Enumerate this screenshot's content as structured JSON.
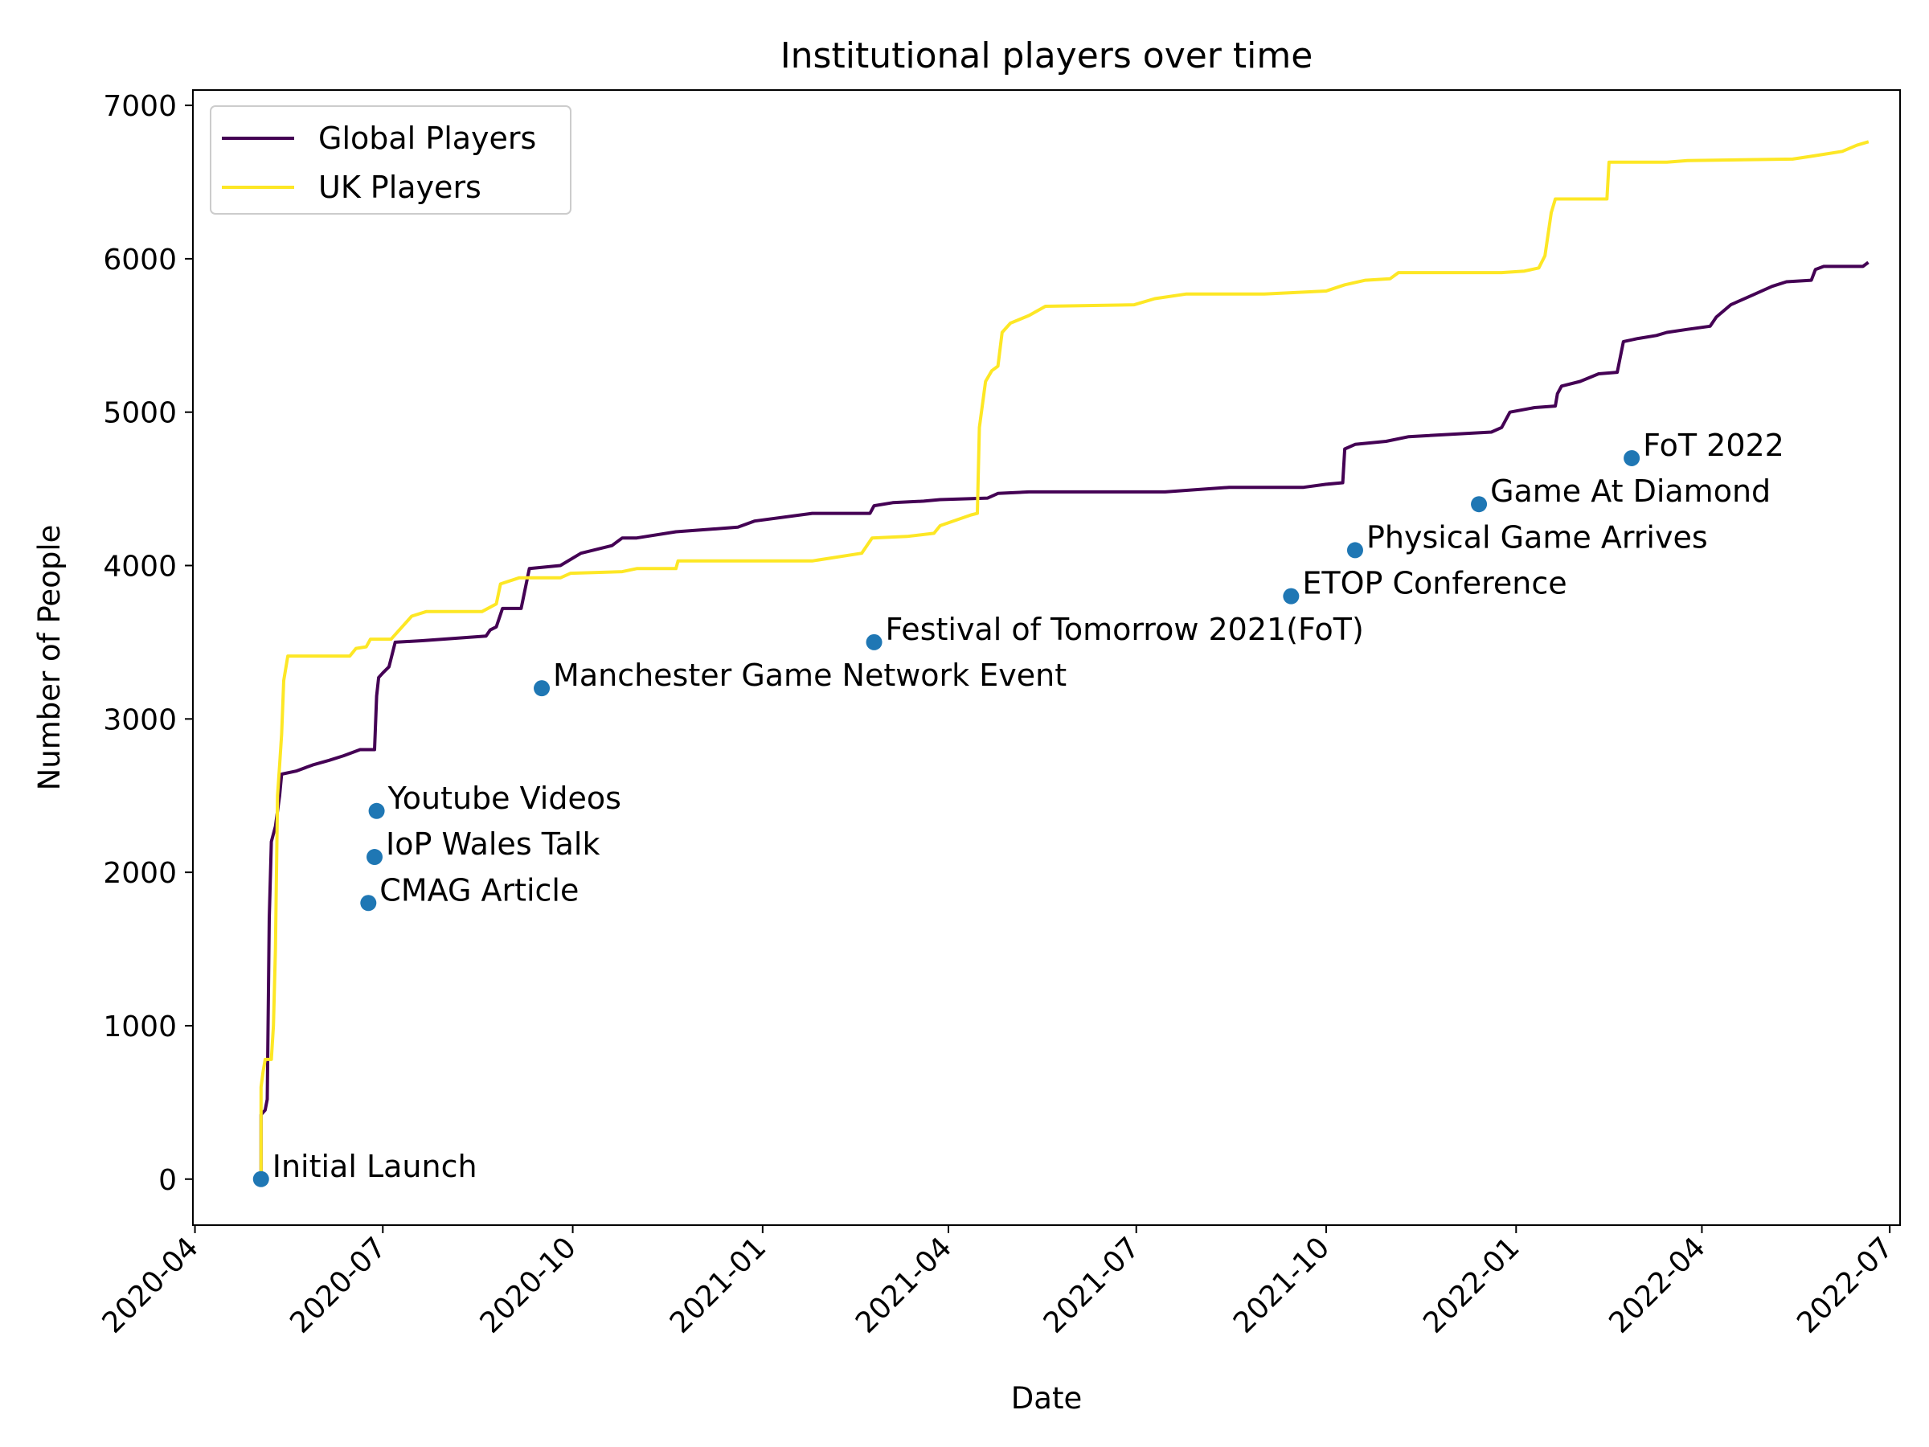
{
  "chart_data": {
    "type": "line",
    "title": "Institutional players over time",
    "xlabel": "Date",
    "ylabel": "Number of People",
    "x_axis": {
      "kind": "date",
      "range": [
        "2020-03-31",
        "2022-07-06"
      ],
      "ticks": [
        "2020-04",
        "2020-07",
        "2020-10",
        "2021-01",
        "2021-04",
        "2021-07",
        "2021-10",
        "2022-01",
        "2022-04",
        "2022-07"
      ]
    },
    "y_axis": {
      "range": [
        -300,
        7100
      ],
      "ticks": [
        0,
        1000,
        2000,
        3000,
        4000,
        5000,
        6000,
        7000
      ]
    },
    "legend": {
      "placement": "top-left"
    },
    "grid": false,
    "series": [
      {
        "name": "Global Players",
        "color": "#440154",
        "points": [
          [
            "2020-05-03",
            0
          ],
          [
            "2020-05-03",
            420
          ],
          [
            "2020-05-05",
            450
          ],
          [
            "2020-05-06",
            520
          ],
          [
            "2020-05-07",
            1700
          ],
          [
            "2020-05-08",
            2200
          ],
          [
            "2020-05-10",
            2300
          ],
          [
            "2020-05-12",
            2500
          ],
          [
            "2020-05-13",
            2640
          ],
          [
            "2020-05-20",
            2660
          ],
          [
            "2020-05-28",
            2700
          ],
          [
            "2020-06-05",
            2730
          ],
          [
            "2020-06-12",
            2760
          ],
          [
            "2020-06-20",
            2800
          ],
          [
            "2020-06-27",
            2800
          ],
          [
            "2020-06-28",
            3150
          ],
          [
            "2020-06-29",
            3270
          ],
          [
            "2020-07-01",
            3300
          ],
          [
            "2020-07-04",
            3340
          ],
          [
            "2020-07-07",
            3500
          ],
          [
            "2020-07-20",
            3510
          ],
          [
            "2020-08-20",
            3540
          ],
          [
            "2020-08-22",
            3580
          ],
          [
            "2020-08-25",
            3600
          ],
          [
            "2020-08-28",
            3720
          ],
          [
            "2020-09-06",
            3720
          ],
          [
            "2020-09-10",
            3980
          ],
          [
            "2020-09-25",
            4000
          ],
          [
            "2020-10-05",
            4080
          ],
          [
            "2020-10-20",
            4130
          ],
          [
            "2020-10-25",
            4180
          ],
          [
            "2020-11-01",
            4180
          ],
          [
            "2020-11-20",
            4220
          ],
          [
            "2020-12-20",
            4250
          ],
          [
            "2020-12-28",
            4290
          ],
          [
            "2021-01-25",
            4340
          ],
          [
            "2021-02-22",
            4340
          ],
          [
            "2021-02-24",
            4390
          ],
          [
            "2021-03-05",
            4410
          ],
          [
            "2021-03-20",
            4420
          ],
          [
            "2021-03-28",
            4430
          ],
          [
            "2021-04-20",
            4440
          ],
          [
            "2021-04-25",
            4470
          ],
          [
            "2021-05-10",
            4480
          ],
          [
            "2021-07-15",
            4480
          ],
          [
            "2021-08-15",
            4510
          ],
          [
            "2021-09-20",
            4510
          ],
          [
            "2021-10-01",
            4530
          ],
          [
            "2021-10-09",
            4540
          ],
          [
            "2021-10-10",
            4760
          ],
          [
            "2021-10-15",
            4790
          ],
          [
            "2021-10-30",
            4810
          ],
          [
            "2021-11-10",
            4840
          ],
          [
            "2021-12-20",
            4870
          ],
          [
            "2021-12-25",
            4900
          ],
          [
            "2021-12-29",
            5000
          ],
          [
            "2022-01-10",
            5030
          ],
          [
            "2022-01-20",
            5040
          ],
          [
            "2022-01-21",
            5120
          ],
          [
            "2022-01-23",
            5170
          ],
          [
            "2022-02-01",
            5200
          ],
          [
            "2022-02-10",
            5250
          ],
          [
            "2022-02-19",
            5260
          ],
          [
            "2022-02-22",
            5460
          ],
          [
            "2022-03-01",
            5480
          ],
          [
            "2022-03-10",
            5500
          ],
          [
            "2022-03-15",
            5520
          ],
          [
            "2022-03-25",
            5540
          ],
          [
            "2022-04-05",
            5560
          ],
          [
            "2022-04-08",
            5620
          ],
          [
            "2022-04-15",
            5700
          ],
          [
            "2022-04-25",
            5760
          ],
          [
            "2022-05-05",
            5820
          ],
          [
            "2022-05-12",
            5850
          ],
          [
            "2022-05-24",
            5860
          ],
          [
            "2022-05-26",
            5930
          ],
          [
            "2022-05-30",
            5950
          ],
          [
            "2022-06-18",
            5950
          ],
          [
            "2022-06-20",
            5970
          ]
        ]
      },
      {
        "name": "UK Players",
        "color": "#fde725",
        "points": [
          [
            "2020-05-03",
            0
          ],
          [
            "2020-05-03",
            600
          ],
          [
            "2020-05-04",
            700
          ],
          [
            "2020-05-05",
            780
          ],
          [
            "2020-05-08",
            780
          ],
          [
            "2020-05-09",
            1000
          ],
          [
            "2020-05-10",
            1500
          ],
          [
            "2020-05-11",
            2500
          ],
          [
            "2020-05-12",
            2700
          ],
          [
            "2020-05-13",
            2900
          ],
          [
            "2020-05-14",
            3250
          ],
          [
            "2020-05-16",
            3410
          ],
          [
            "2020-06-15",
            3410
          ],
          [
            "2020-06-18",
            3460
          ],
          [
            "2020-06-23",
            3470
          ],
          [
            "2020-06-25",
            3520
          ],
          [
            "2020-07-05",
            3520
          ],
          [
            "2020-07-09",
            3580
          ],
          [
            "2020-07-15",
            3670
          ],
          [
            "2020-07-22",
            3700
          ],
          [
            "2020-08-18",
            3700
          ],
          [
            "2020-08-25",
            3750
          ],
          [
            "2020-08-27",
            3880
          ],
          [
            "2020-09-05",
            3920
          ],
          [
            "2020-09-25",
            3920
          ],
          [
            "2020-09-30",
            3950
          ],
          [
            "2020-10-25",
            3960
          ],
          [
            "2020-11-01",
            3980
          ],
          [
            "2020-11-20",
            3980
          ],
          [
            "2020-11-21",
            4030
          ],
          [
            "2021-01-25",
            4030
          ],
          [
            "2021-02-18",
            4080
          ],
          [
            "2021-02-23",
            4180
          ],
          [
            "2021-03-12",
            4190
          ],
          [
            "2021-03-25",
            4210
          ],
          [
            "2021-03-28",
            4260
          ],
          [
            "2021-04-12",
            4330
          ],
          [
            "2021-04-15",
            4340
          ],
          [
            "2021-04-16",
            4900
          ],
          [
            "2021-04-19",
            5200
          ],
          [
            "2021-04-22",
            5270
          ],
          [
            "2021-04-25",
            5300
          ],
          [
            "2021-04-27",
            5520
          ],
          [
            "2021-05-01",
            5580
          ],
          [
            "2021-05-10",
            5630
          ],
          [
            "2021-05-18",
            5690
          ],
          [
            "2021-06-30",
            5700
          ],
          [
            "2021-07-10",
            5740
          ],
          [
            "2021-07-25",
            5770
          ],
          [
            "2021-09-01",
            5770
          ],
          [
            "2021-10-01",
            5790
          ],
          [
            "2021-10-10",
            5830
          ],
          [
            "2021-10-20",
            5860
          ],
          [
            "2021-11-01",
            5870
          ],
          [
            "2021-11-05",
            5910
          ],
          [
            "2021-12-25",
            5910
          ],
          [
            "2022-01-05",
            5920
          ],
          [
            "2022-01-12",
            5940
          ],
          [
            "2022-01-15",
            6020
          ],
          [
            "2022-01-18",
            6300
          ],
          [
            "2022-01-20",
            6390
          ],
          [
            "2022-02-14",
            6390
          ],
          [
            "2022-02-15",
            6630
          ],
          [
            "2022-03-15",
            6630
          ],
          [
            "2022-03-25",
            6640
          ],
          [
            "2022-05-15",
            6650
          ],
          [
            "2022-05-25",
            6670
          ],
          [
            "2022-06-08",
            6700
          ],
          [
            "2022-06-15",
            6740
          ],
          [
            "2022-06-20",
            6760
          ]
        ]
      }
    ],
    "annotations": {
      "color": "#1f77b4",
      "points": [
        {
          "label": "Initial Launch",
          "date": "2020-05-03",
          "value": 0
        },
        {
          "label": "CMAG Article",
          "date": "2020-06-24",
          "value": 1800
        },
        {
          "label": "IoP Wales Talk",
          "date": "2020-06-27",
          "value": 2100
        },
        {
          "label": "Youtube Videos",
          "date": "2020-06-28",
          "value": 2400
        },
        {
          "label": "Manchester Game Network Event",
          "date": "2020-09-16",
          "value": 3200
        },
        {
          "label": "Festival of Tomorrow 2021(FoT)",
          "date": "2021-02-24",
          "value": 3500
        },
        {
          "label": "ETOP Conference",
          "date": "2021-09-14",
          "value": 3800
        },
        {
          "label": "Physical Game Arrives",
          "date": "2021-10-15",
          "value": 4100
        },
        {
          "label": "Game At Diamond",
          "date": "2021-12-14",
          "value": 4400
        },
        {
          "label": "FoT 2022",
          "date": "2022-02-26",
          "value": 4700
        }
      ]
    }
  }
}
